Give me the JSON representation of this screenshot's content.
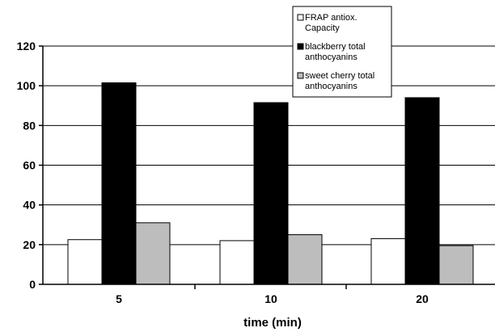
{
  "chart_data": {
    "type": "bar",
    "xlabel": "time (min)",
    "ylabel": "",
    "categories": [
      "5",
      "10",
      "20"
    ],
    "ylim": [
      0,
      120
    ],
    "yticks": [
      "0",
      "20",
      "40",
      "60",
      "80",
      "100",
      "120"
    ],
    "grid": "horizontal",
    "legend_position": "top-right",
    "series": [
      {
        "name_lines": [
          "FRAP antiox.",
          "Capacity"
        ],
        "color": "#ffffff",
        "values": [
          22.5,
          22,
          23
        ]
      },
      {
        "name_lines": [
          "blackberry total",
          "anthocyanins"
        ],
        "color": "#000000",
        "values": [
          101.5,
          91.5,
          94
        ]
      },
      {
        "name_lines": [
          "sweet cherry total",
          "anthocyanins"
        ],
        "color": "#bdbdbd",
        "values": [
          31,
          25,
          19.5
        ]
      }
    ]
  }
}
